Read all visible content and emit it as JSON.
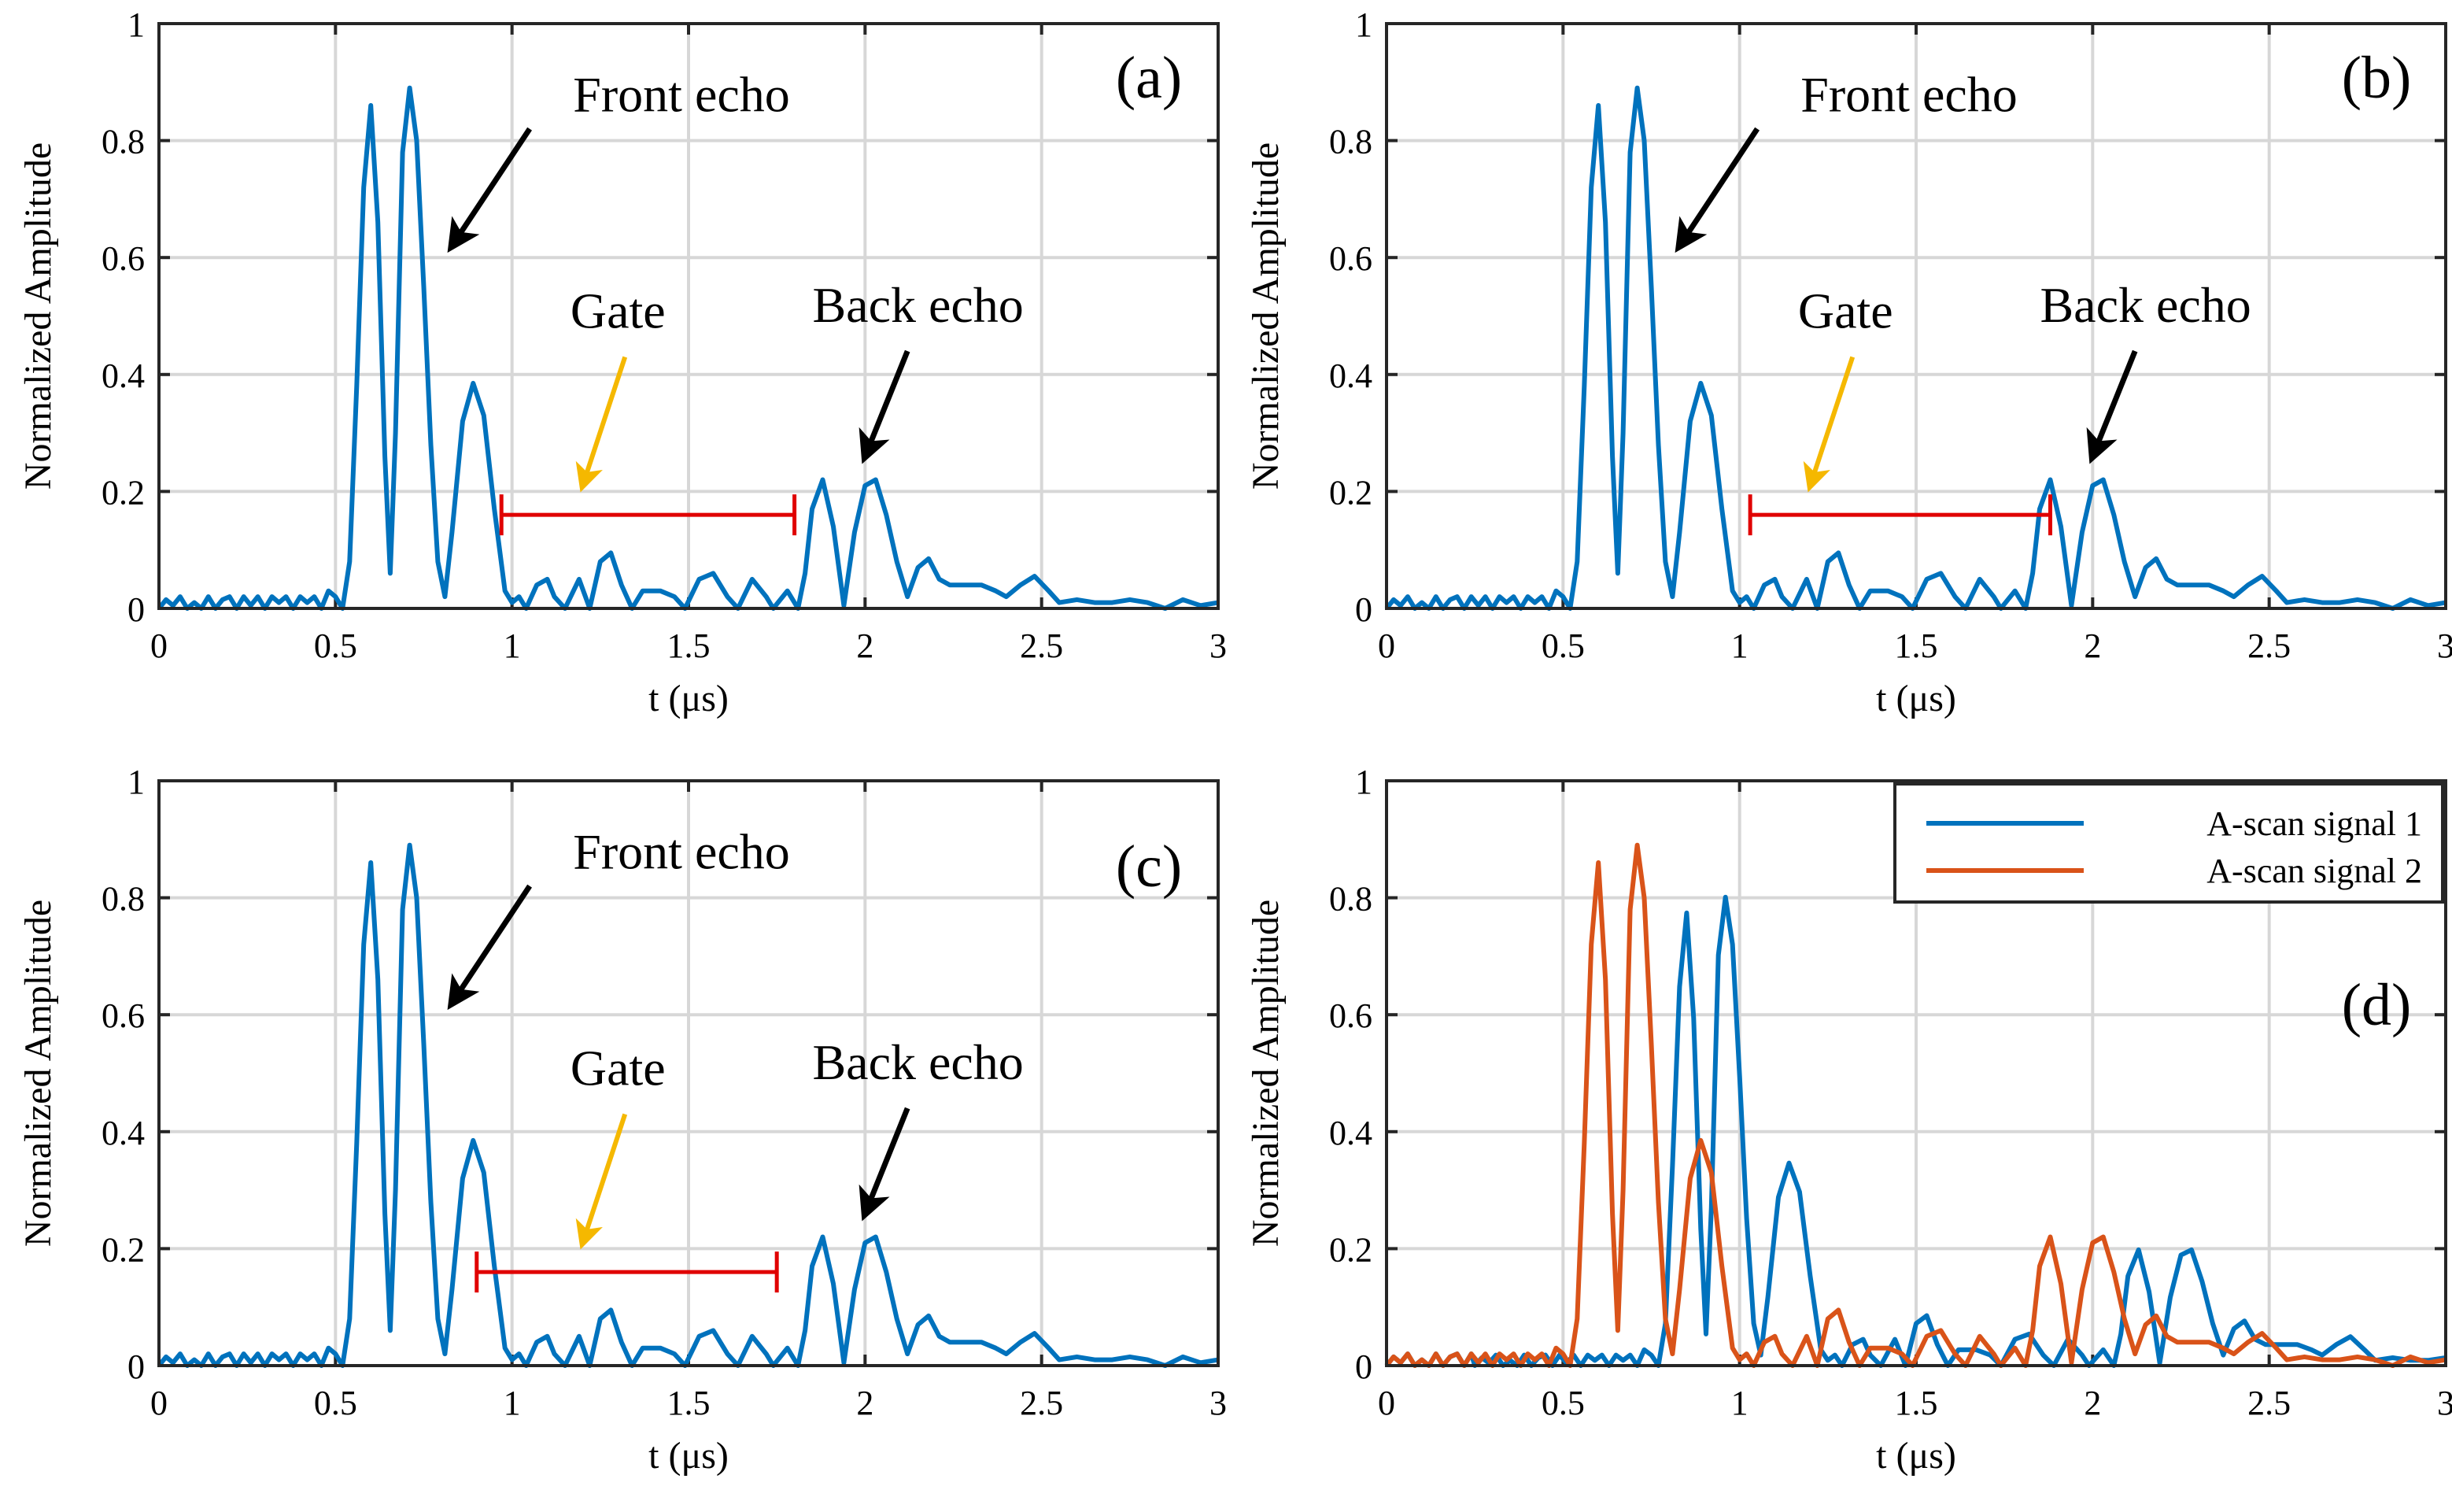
{
  "colors": {
    "signal1": "#0072BD",
    "signal2": "#D95319",
    "gate": "#E00000",
    "gate_arrow": "#F5B800",
    "annotation_arrow": "#000000"
  },
  "chart_data": [
    {
      "type": "line",
      "panel": "(a)",
      "xlabel": "t (μs)",
      "ylabel": "Normalized Amplitude",
      "xlim": [
        0,
        3
      ],
      "ylim": [
        0,
        1
      ],
      "xticks": [
        "0",
        "0.5",
        "1",
        "1.5",
        "2",
        "2.5",
        "3"
      ],
      "yticks": [
        "0",
        "0.2",
        "0.4",
        "0.6",
        "0.8",
        "1"
      ],
      "grid": true,
      "series": [
        {
          "name": "A-scan signal 1",
          "color": "signal1",
          "shift": 0
        }
      ],
      "gate": {
        "x_start": 0.97,
        "x_end": 1.8,
        "y": 0.16
      },
      "annotations": [
        {
          "text": "Front echo",
          "x": 1.48,
          "y": 0.85,
          "arrow_from": [
            1.05,
            0.82
          ],
          "arrow_to": [
            0.83,
            0.62
          ]
        },
        {
          "text": "Gate",
          "x": 1.3,
          "y": 0.48,
          "arrow_from": [
            1.32,
            0.43
          ],
          "arrow_to": [
            1.2,
            0.21
          ],
          "arrow_color": "gate_arrow"
        },
        {
          "text": "Back echo",
          "x": 2.15,
          "y": 0.49,
          "arrow_from": [
            2.12,
            0.44
          ],
          "arrow_to": [
            2.0,
            0.26
          ]
        }
      ]
    },
    {
      "type": "line",
      "panel": "(b)",
      "xlabel": "t (μs)",
      "ylabel": "Normalized Amplitude",
      "xlim": [
        0,
        3
      ],
      "ylim": [
        0,
        1
      ],
      "xticks": [
        "0",
        "0.5",
        "1",
        "1.5",
        "2",
        "2.5",
        "3"
      ],
      "yticks": [
        "0",
        "0.2",
        "0.4",
        "0.6",
        "0.8",
        "1"
      ],
      "grid": true,
      "series": [
        {
          "name": "A-scan signal 1",
          "color": "signal1",
          "shift": 0
        }
      ],
      "gate": {
        "x_start": 1.03,
        "x_end": 1.88,
        "y": 0.16
      },
      "annotations": [
        {
          "text": "Front echo",
          "x": 1.48,
          "y": 0.85,
          "arrow_from": [
            1.05,
            0.82
          ],
          "arrow_to": [
            0.83,
            0.62
          ]
        },
        {
          "text": "Gate",
          "x": 1.3,
          "y": 0.48,
          "arrow_from": [
            1.32,
            0.43
          ],
          "arrow_to": [
            1.2,
            0.21
          ],
          "arrow_color": "gate_arrow"
        },
        {
          "text": "Back echo",
          "x": 2.15,
          "y": 0.49,
          "arrow_from": [
            2.12,
            0.44
          ],
          "arrow_to": [
            2.0,
            0.26
          ]
        }
      ]
    },
    {
      "type": "line",
      "panel": "(c)",
      "xlabel": "t (μs)",
      "ylabel": "Normalized Amplitude",
      "xlim": [
        0,
        3
      ],
      "ylim": [
        0,
        1
      ],
      "xticks": [
        "0",
        "0.5",
        "1",
        "1.5",
        "2",
        "2.5",
        "3"
      ],
      "yticks": [
        "0",
        "0.2",
        "0.4",
        "0.6",
        "0.8",
        "1"
      ],
      "grid": true,
      "series": [
        {
          "name": "A-scan signal 1",
          "color": "signal1",
          "shift": 0
        }
      ],
      "gate": {
        "x_start": 0.9,
        "x_end": 1.75,
        "y": 0.16
      },
      "annotations": [
        {
          "text": "Front echo",
          "x": 1.48,
          "y": 0.85,
          "arrow_from": [
            1.05,
            0.82
          ],
          "arrow_to": [
            0.83,
            0.62
          ]
        },
        {
          "text": "Gate",
          "x": 1.3,
          "y": 0.48,
          "arrow_from": [
            1.32,
            0.43
          ],
          "arrow_to": [
            1.2,
            0.21
          ],
          "arrow_color": "gate_arrow"
        },
        {
          "text": "Back echo",
          "x": 2.15,
          "y": 0.49,
          "arrow_from": [
            2.12,
            0.44
          ],
          "arrow_to": [
            2.0,
            0.26
          ]
        }
      ]
    },
    {
      "type": "line",
      "panel": "(d)",
      "xlabel": "t (μs)",
      "ylabel": "Normalized Amplitude",
      "xlim": [
        0,
        3
      ],
      "ylim": [
        0,
        1
      ],
      "xticks": [
        "0",
        "0.5",
        "1",
        "1.5",
        "2",
        "2.5",
        "3"
      ],
      "yticks": [
        "0",
        "0.2",
        "0.4",
        "0.6",
        "0.8",
        "1"
      ],
      "grid": true,
      "legend": "top-right",
      "series": [
        {
          "name": "A-scan signal 1",
          "color": "signal1",
          "shift": 0.25,
          "amp_scale": 0.9
        },
        {
          "name": "A-scan signal 2",
          "color": "signal2",
          "shift": 0
        }
      ],
      "annotations": []
    }
  ],
  "waveform": {
    "description_units": "t in μs, normalized amplitude",
    "points": [
      [
        0.0,
        0.0
      ],
      [
        0.02,
        0.015
      ],
      [
        0.04,
        0.005
      ],
      [
        0.06,
        0.02
      ],
      [
        0.08,
        0.0
      ],
      [
        0.1,
        0.01
      ],
      [
        0.12,
        0.0
      ],
      [
        0.14,
        0.02
      ],
      [
        0.16,
        0.0
      ],
      [
        0.18,
        0.015
      ],
      [
        0.2,
        0.02
      ],
      [
        0.22,
        0.0
      ],
      [
        0.24,
        0.02
      ],
      [
        0.26,
        0.005
      ],
      [
        0.28,
        0.02
      ],
      [
        0.3,
        0.0
      ],
      [
        0.32,
        0.02
      ],
      [
        0.34,
        0.01
      ],
      [
        0.36,
        0.02
      ],
      [
        0.38,
        0.0
      ],
      [
        0.4,
        0.02
      ],
      [
        0.42,
        0.01
      ],
      [
        0.44,
        0.02
      ],
      [
        0.46,
        0.0
      ],
      [
        0.48,
        0.03
      ],
      [
        0.5,
        0.02
      ],
      [
        0.52,
        0.0
      ],
      [
        0.54,
        0.08
      ],
      [
        0.56,
        0.38
      ],
      [
        0.58,
        0.72
      ],
      [
        0.6,
        0.86
      ],
      [
        0.62,
        0.66
      ],
      [
        0.64,
        0.26
      ],
      [
        0.655,
        0.06
      ],
      [
        0.67,
        0.3
      ],
      [
        0.69,
        0.78
      ],
      [
        0.71,
        0.89
      ],
      [
        0.73,
        0.8
      ],
      [
        0.75,
        0.55
      ],
      [
        0.77,
        0.28
      ],
      [
        0.79,
        0.08
      ],
      [
        0.81,
        0.02
      ],
      [
        0.83,
        0.13
      ],
      [
        0.86,
        0.32
      ],
      [
        0.89,
        0.385
      ],
      [
        0.92,
        0.33
      ],
      [
        0.95,
        0.17
      ],
      [
        0.98,
        0.03
      ],
      [
        1.0,
        0.01
      ],
      [
        1.02,
        0.02
      ],
      [
        1.04,
        0.0
      ],
      [
        1.07,
        0.04
      ],
      [
        1.1,
        0.05
      ],
      [
        1.12,
        0.02
      ],
      [
        1.15,
        0.0
      ],
      [
        1.19,
        0.05
      ],
      [
        1.22,
        0.0
      ],
      [
        1.25,
        0.08
      ],
      [
        1.28,
        0.095
      ],
      [
        1.31,
        0.04
      ],
      [
        1.34,
        0.0
      ],
      [
        1.37,
        0.03
      ],
      [
        1.42,
        0.03
      ],
      [
        1.46,
        0.02
      ],
      [
        1.49,
        0.0
      ],
      [
        1.53,
        0.05
      ],
      [
        1.57,
        0.06
      ],
      [
        1.61,
        0.02
      ],
      [
        1.64,
        0.0
      ],
      [
        1.68,
        0.05
      ],
      [
        1.72,
        0.02
      ],
      [
        1.74,
        0.0
      ],
      [
        1.78,
        0.03
      ],
      [
        1.81,
        0.0
      ],
      [
        1.83,
        0.06
      ],
      [
        1.85,
        0.17
      ],
      [
        1.88,
        0.22
      ],
      [
        1.91,
        0.14
      ],
      [
        1.94,
        0.005
      ],
      [
        1.97,
        0.13
      ],
      [
        2.0,
        0.21
      ],
      [
        2.03,
        0.22
      ],
      [
        2.06,
        0.16
      ],
      [
        2.09,
        0.08
      ],
      [
        2.12,
        0.02
      ],
      [
        2.15,
        0.07
      ],
      [
        2.18,
        0.085
      ],
      [
        2.21,
        0.05
      ],
      [
        2.24,
        0.04
      ],
      [
        2.28,
        0.04
      ],
      [
        2.33,
        0.04
      ],
      [
        2.37,
        0.03
      ],
      [
        2.4,
        0.02
      ],
      [
        2.44,
        0.04
      ],
      [
        2.48,
        0.055
      ],
      [
        2.52,
        0.03
      ],
      [
        2.55,
        0.01
      ],
      [
        2.6,
        0.015
      ],
      [
        2.65,
        0.01
      ],
      [
        2.7,
        0.01
      ],
      [
        2.75,
        0.015
      ],
      [
        2.8,
        0.01
      ],
      [
        2.85,
        0.0
      ],
      [
        2.9,
        0.015
      ],
      [
        2.95,
        0.005
      ],
      [
        3.0,
        0.01
      ]
    ]
  }
}
